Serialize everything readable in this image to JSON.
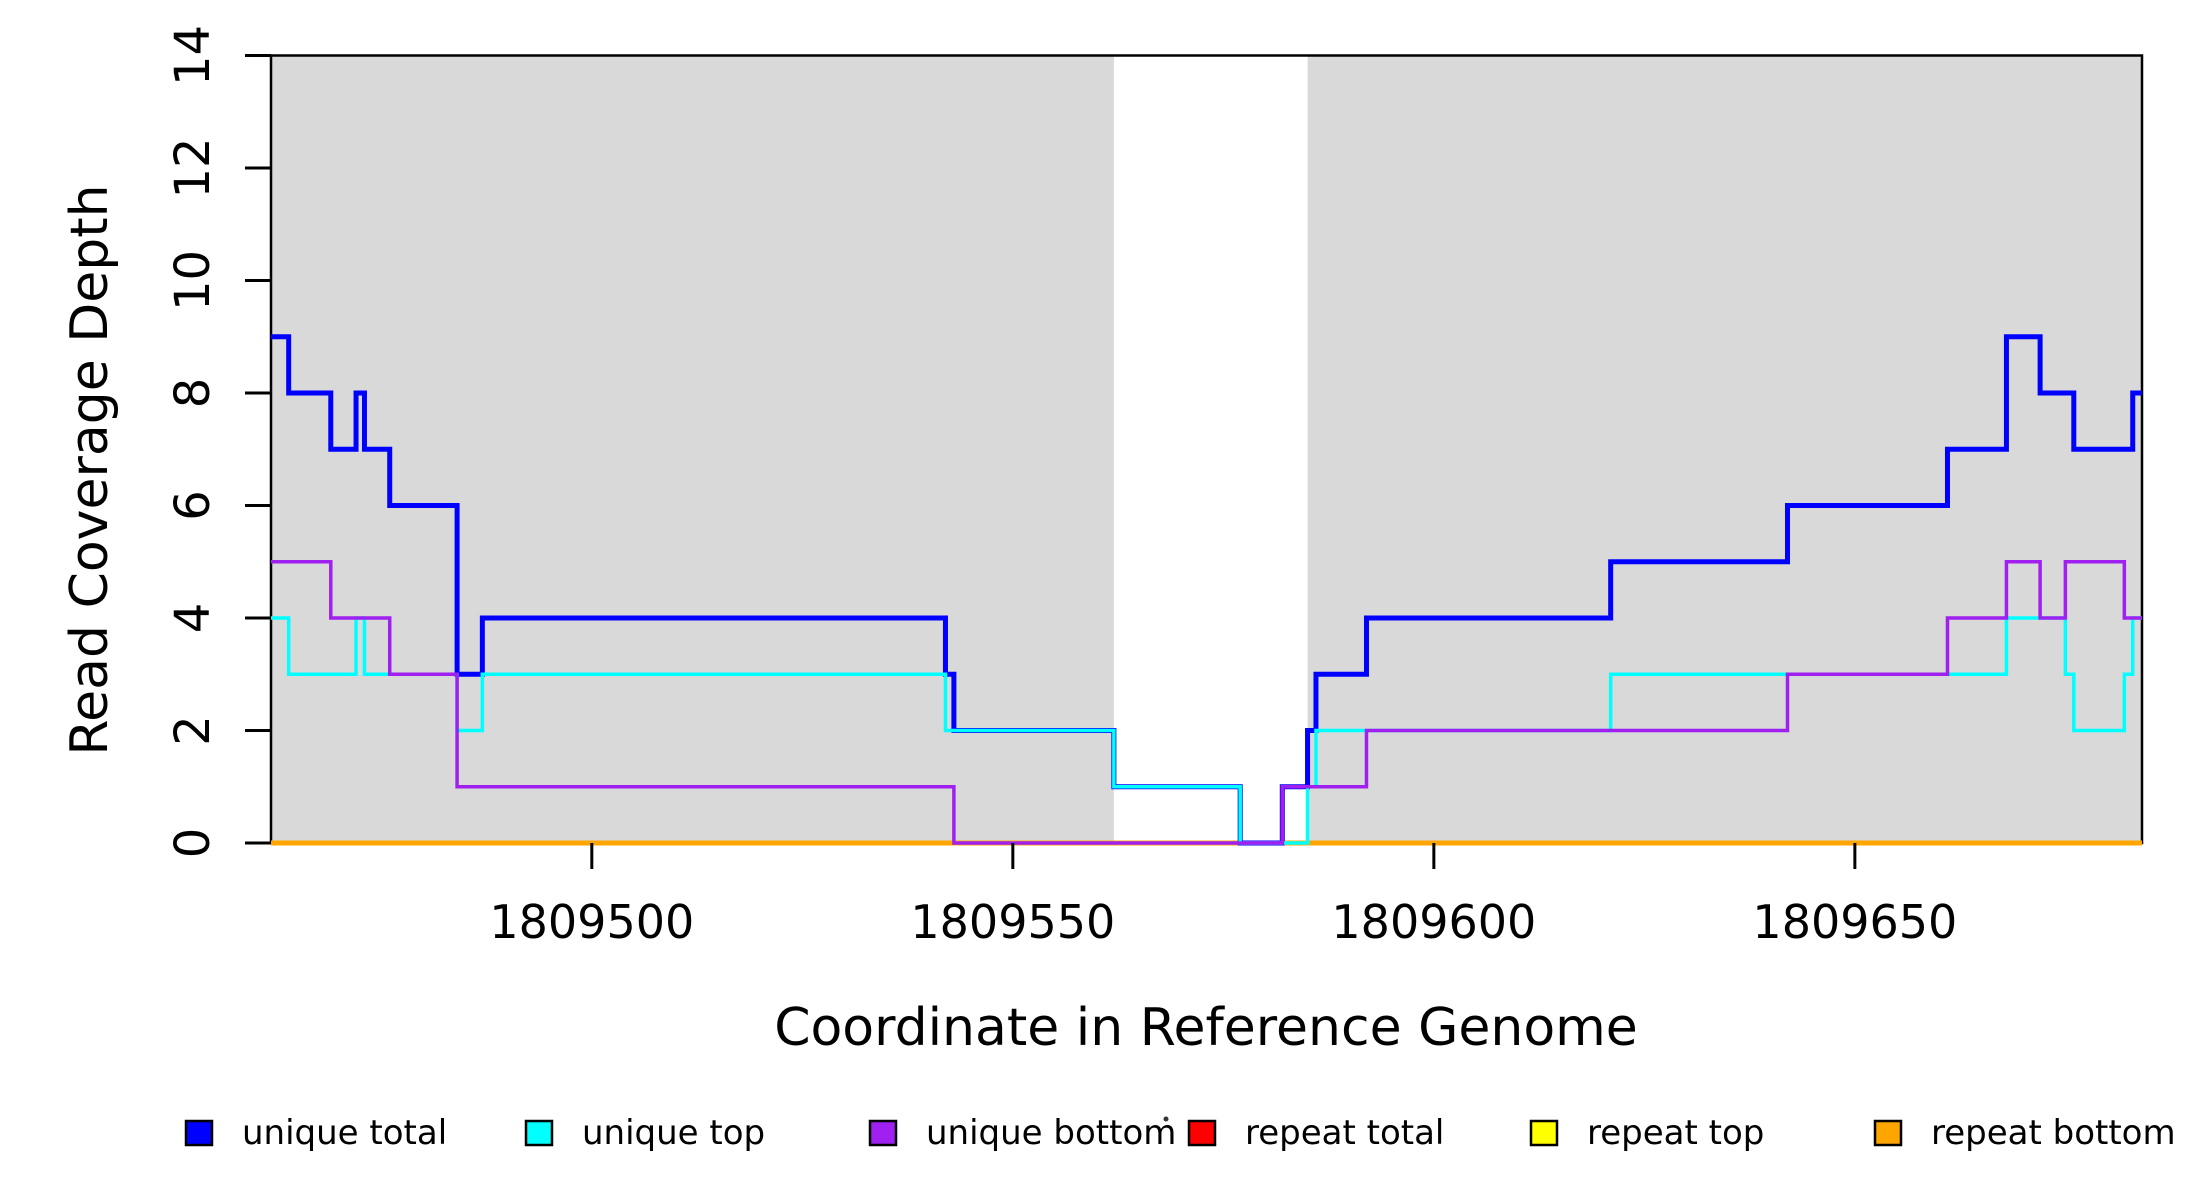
{
  "figure": {
    "background": "#ffffff"
  },
  "chart_data": {
    "type": "line",
    "subtype": "step-coverage",
    "title": "",
    "xlabel": "Coordinate in Reference Genome",
    "ylabel": "Read Coverage Depth",
    "xlim": [
      1809461.9,
      1809684.1
    ],
    "ylim": [
      0,
      14
    ],
    "x_ticks": [
      1809500,
      1809550,
      1809600,
      1809650
    ],
    "y_ticks": [
      0,
      2,
      4,
      6,
      8,
      10,
      12,
      14
    ],
    "grid": "off",
    "shaded_regions": [
      {
        "x1": 1809461.9,
        "x2": 1809562,
        "color": "#D9D9D9"
      },
      {
        "x1": 1809585,
        "x2": 1809684.1,
        "color": "#D9D9D9"
      }
    ],
    "series": [
      {
        "name": "repeat total",
        "color": "#FF0000",
        "width": 4,
        "steps": [
          [
            1809461.9,
            0
          ]
        ],
        "x_end": 1809684.1
      },
      {
        "name": "repeat top",
        "color": "#FFFF00",
        "width": 4,
        "steps": [
          [
            1809461.9,
            0
          ]
        ],
        "x_end": 1809684.1
      },
      {
        "name": "repeat bottom",
        "color": "#FFA500",
        "width": 5,
        "steps": [
          [
            1809461.9,
            0
          ]
        ],
        "x_end": 1809684.1
      },
      {
        "name": "unique total",
        "color": "#0000FF",
        "width": 5,
        "steps": [
          [
            1809461.9,
            9
          ],
          [
            1809464,
            8
          ],
          [
            1809469,
            7
          ],
          [
            1809472,
            8
          ],
          [
            1809473,
            7
          ],
          [
            1809476,
            6
          ],
          [
            1809484,
            3
          ],
          [
            1809487,
            4
          ],
          [
            1809542,
            3
          ],
          [
            1809543,
            2
          ],
          [
            1809562,
            1
          ],
          [
            1809577,
            0
          ],
          [
            1809582,
            1
          ],
          [
            1809585,
            2
          ],
          [
            1809586,
            3
          ],
          [
            1809592,
            4
          ],
          [
            1809621,
            5
          ],
          [
            1809642,
            6
          ],
          [
            1809661,
            7
          ],
          [
            1809668,
            9
          ],
          [
            1809672,
            8
          ],
          [
            1809676,
            7
          ],
          [
            1809683,
            8
          ]
        ],
        "x_end": 1809684.1
      },
      {
        "name": "unique top",
        "color": "#00FFFF",
        "width": 3.5,
        "steps": [
          [
            1809461.9,
            4
          ],
          [
            1809464,
            3
          ],
          [
            1809472,
            4
          ],
          [
            1809473,
            3
          ],
          [
            1809484,
            2
          ],
          [
            1809487,
            3
          ],
          [
            1809542,
            2
          ],
          [
            1809562,
            1
          ],
          [
            1809577,
            0
          ],
          [
            1809585,
            1
          ],
          [
            1809586,
            2
          ],
          [
            1809621,
            3
          ],
          [
            1809668,
            4
          ],
          [
            1809675,
            3
          ],
          [
            1809676,
            2
          ],
          [
            1809682,
            3
          ],
          [
            1809683,
            4
          ]
        ],
        "x_end": 1809684.1
      },
      {
        "name": "unique bottom",
        "color": "#A020F0",
        "width": 3.5,
        "steps": [
          [
            1809461.9,
            5
          ],
          [
            1809469,
            4
          ],
          [
            1809476,
            3
          ],
          [
            1809484,
            1
          ],
          [
            1809543,
            0
          ],
          [
            1809582,
            1
          ],
          [
            1809592,
            2
          ],
          [
            1809642,
            3
          ],
          [
            1809661,
            4
          ],
          [
            1809668,
            5
          ],
          [
            1809672,
            4
          ],
          [
            1809675,
            5
          ],
          [
            1809682,
            4
          ]
        ],
        "x_end": 1809684.1
      }
    ],
    "legend": {
      "position": "bottom",
      "entries": [
        {
          "label": "unique total",
          "color": "#0000FF"
        },
        {
          "label": "unique top",
          "color": "#00FFFF"
        },
        {
          "label": "unique bottom",
          "color": "#A020F0"
        },
        {
          "label": "repeat total",
          "color": "#FF0000"
        },
        {
          "label": "repeat top",
          "color": "#FFFF00"
        },
        {
          "label": "repeat bottom",
          "color": "#FFA500"
        }
      ]
    }
  }
}
